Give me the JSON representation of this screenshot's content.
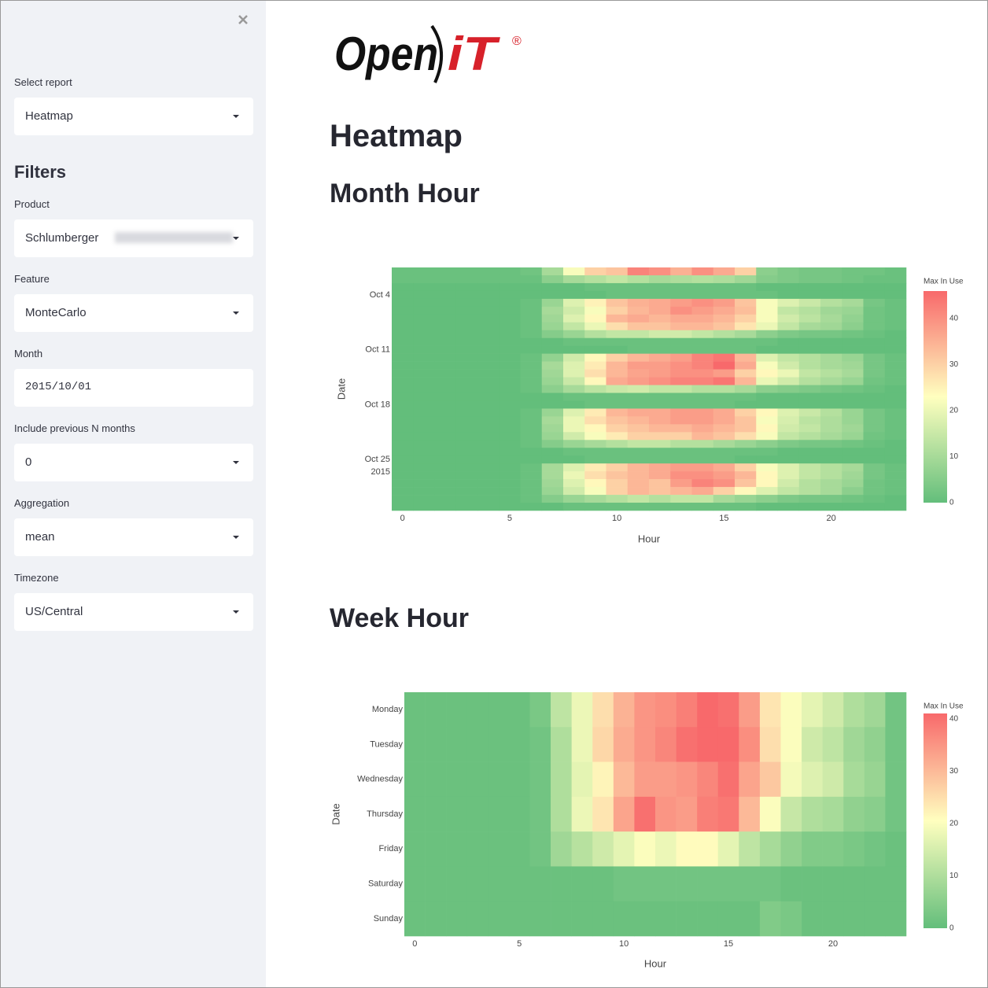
{
  "sidebar": {
    "select_report": {
      "label": "Select report",
      "value": "Heatmap"
    },
    "filters_title": "Filters",
    "fields": [
      {
        "label": "Product",
        "value": "Schlumberger",
        "kind": "select"
      },
      {
        "label": "Feature",
        "value": "MonteCarlo",
        "kind": "select"
      },
      {
        "label": "Month",
        "value": "2015/10/01",
        "kind": "date"
      },
      {
        "label": "Include previous N months",
        "value": "0",
        "kind": "select"
      },
      {
        "label": "Aggregation",
        "value": "mean",
        "kind": "select"
      },
      {
        "label": "Timezone",
        "value": "US/Central",
        "kind": "select"
      }
    ]
  },
  "logo": {
    "word": "Open",
    "brand": "iT",
    "mark": "®"
  },
  "header": {
    "title": "Heatmap"
  },
  "chart_data": [
    {
      "type": "heatmap",
      "title": "Month Hour",
      "xlabel": "Hour",
      "ylabel": "Date",
      "colorbar_title": "Max In Use",
      "x": [
        0,
        1,
        2,
        3,
        4,
        5,
        6,
        7,
        8,
        9,
        10,
        11,
        12,
        13,
        14,
        15,
        16,
        17,
        18,
        19,
        20,
        21,
        22,
        23
      ],
      "y": [
        "2015-10-01",
        "2015-10-02",
        "2015-10-03",
        "2015-10-04",
        "2015-10-05",
        "2015-10-06",
        "2015-10-07",
        "2015-10-08",
        "2015-10-09",
        "2015-10-10",
        "2015-10-11",
        "2015-10-12",
        "2015-10-13",
        "2015-10-14",
        "2015-10-15",
        "2015-10-16",
        "2015-10-17",
        "2015-10-18",
        "2015-10-19",
        "2015-10-20",
        "2015-10-21",
        "2015-10-22",
        "2015-10-23",
        "2015-10-24",
        "2015-10-25",
        "2015-10-26",
        "2015-10-27",
        "2015-10-28",
        "2015-10-29",
        "2015-10-30",
        "2015-10-31"
      ],
      "z": [
        [
          1,
          1,
          1,
          1,
          1,
          1,
          2,
          10,
          22,
          30,
          32,
          42,
          40,
          35,
          40,
          36,
          30,
          6,
          4,
          3,
          3,
          2,
          2,
          1
        ],
        [
          1,
          1,
          1,
          1,
          1,
          1,
          1,
          6,
          10,
          12,
          14,
          12,
          10,
          11,
          12,
          11,
          9,
          5,
          4,
          3,
          3,
          2,
          1,
          1
        ],
        [
          0,
          0,
          0,
          0,
          0,
          0,
          0,
          0,
          0,
          1,
          1,
          1,
          1,
          1,
          1,
          1,
          1,
          0,
          0,
          0,
          0,
          0,
          0,
          0
        ],
        [
          0,
          0,
          0,
          0,
          0,
          0,
          0,
          0,
          0,
          0,
          1,
          1,
          1,
          1,
          1,
          1,
          1,
          1,
          0,
          0,
          0,
          0,
          0,
          0
        ],
        [
          0,
          0,
          0,
          0,
          0,
          0,
          1,
          8,
          18,
          25,
          32,
          35,
          36,
          38,
          40,
          38,
          32,
          22,
          18,
          15,
          12,
          10,
          3,
          1
        ],
        [
          0,
          0,
          0,
          0,
          0,
          0,
          1,
          10,
          16,
          22,
          30,
          34,
          36,
          40,
          38,
          36,
          33,
          22,
          14,
          12,
          9,
          8,
          2,
          1
        ],
        [
          0,
          0,
          0,
          0,
          0,
          0,
          1,
          9,
          18,
          24,
          34,
          36,
          34,
          36,
          36,
          34,
          30,
          22,
          16,
          13,
          10,
          7,
          2,
          1
        ],
        [
          0,
          0,
          0,
          0,
          0,
          0,
          1,
          8,
          14,
          20,
          28,
          32,
          32,
          34,
          34,
          32,
          27,
          20,
          14,
          10,
          9,
          6,
          2,
          1
        ],
        [
          0,
          0,
          0,
          0,
          0,
          0,
          1,
          5,
          8,
          12,
          14,
          14,
          16,
          16,
          14,
          12,
          10,
          6,
          4,
          3,
          3,
          2,
          1,
          0
        ],
        [
          0,
          0,
          0,
          0,
          0,
          0,
          0,
          0,
          1,
          1,
          1,
          1,
          1,
          1,
          1,
          1,
          1,
          1,
          0,
          0,
          0,
          0,
          0,
          0
        ],
        [
          0,
          0,
          0,
          0,
          0,
          0,
          0,
          0,
          0,
          0,
          0,
          1,
          1,
          1,
          1,
          1,
          1,
          0,
          0,
          0,
          0,
          0,
          0,
          0
        ],
        [
          0,
          0,
          0,
          0,
          0,
          0,
          1,
          7,
          16,
          24,
          30,
          34,
          36,
          38,
          42,
          44,
          34,
          18,
          14,
          12,
          10,
          8,
          3,
          1
        ],
        [
          0,
          0,
          0,
          0,
          0,
          0,
          1,
          10,
          18,
          26,
          34,
          38,
          38,
          40,
          42,
          46,
          36,
          22,
          16,
          12,
          10,
          9,
          3,
          1
        ],
        [
          0,
          0,
          0,
          0,
          0,
          0,
          1,
          9,
          18,
          28,
          34,
          37,
          38,
          40,
          40,
          38,
          30,
          24,
          20,
          14,
          12,
          10,
          3,
          1
        ],
        [
          0,
          0,
          0,
          0,
          0,
          0,
          1,
          8,
          15,
          24,
          36,
          38,
          40,
          42,
          42,
          44,
          34,
          20,
          16,
          12,
          10,
          8,
          2,
          1
        ],
        [
          0,
          0,
          0,
          0,
          0,
          0,
          1,
          6,
          10,
          13,
          15,
          16,
          14,
          14,
          12,
          12,
          10,
          6,
          5,
          4,
          3,
          2,
          1,
          0
        ],
        [
          0,
          0,
          0,
          0,
          0,
          0,
          0,
          0,
          1,
          1,
          1,
          1,
          1,
          1,
          1,
          1,
          1,
          0,
          0,
          0,
          0,
          0,
          0,
          0
        ],
        [
          0,
          0,
          0,
          0,
          0,
          0,
          0,
          0,
          0,
          1,
          1,
          1,
          1,
          1,
          1,
          1,
          0,
          0,
          0,
          0,
          0,
          0,
          0,
          0
        ],
        [
          0,
          0,
          0,
          0,
          0,
          0,
          1,
          8,
          18,
          26,
          34,
          36,
          36,
          38,
          38,
          36,
          30,
          24,
          18,
          15,
          12,
          8,
          3,
          1
        ],
        [
          0,
          0,
          0,
          0,
          0,
          0,
          1,
          10,
          20,
          28,
          32,
          34,
          36,
          38,
          38,
          36,
          32,
          22,
          17,
          13,
          11,
          8,
          3,
          1
        ],
        [
          0,
          0,
          0,
          0,
          0,
          0,
          1,
          9,
          20,
          24,
          30,
          32,
          34,
          34,
          36,
          34,
          32,
          24,
          16,
          14,
          11,
          9,
          3,
          1
        ],
        [
          0,
          0,
          0,
          0,
          0,
          0,
          1,
          8,
          16,
          22,
          26,
          30,
          30,
          30,
          34,
          32,
          28,
          22,
          14,
          12,
          10,
          8,
          2,
          1
        ],
        [
          0,
          0,
          0,
          0,
          0,
          0,
          1,
          5,
          8,
          10,
          12,
          14,
          14,
          12,
          12,
          10,
          8,
          6,
          4,
          3,
          3,
          2,
          1,
          0
        ],
        [
          0,
          0,
          0,
          0,
          0,
          0,
          0,
          0,
          1,
          1,
          1,
          1,
          1,
          1,
          1,
          1,
          1,
          1,
          0,
          0,
          0,
          0,
          0,
          0
        ],
        [
          0,
          0,
          0,
          0,
          0,
          0,
          0,
          0,
          0,
          1,
          1,
          1,
          1,
          1,
          1,
          1,
          0,
          0,
          0,
          0,
          0,
          0,
          0,
          0
        ],
        [
          0,
          0,
          0,
          0,
          0,
          0,
          1,
          10,
          18,
          26,
          30,
          34,
          36,
          38,
          38,
          36,
          30,
          22,
          18,
          14,
          12,
          10,
          3,
          1
        ],
        [
          0,
          0,
          0,
          0,
          0,
          0,
          1,
          10,
          20,
          28,
          32,
          34,
          36,
          40,
          40,
          38,
          34,
          24,
          18,
          14,
          12,
          9,
          3,
          1
        ],
        [
          0,
          0,
          0,
          0,
          0,
          0,
          1,
          9,
          18,
          24,
          30,
          34,
          32,
          38,
          42,
          40,
          32,
          24,
          16,
          12,
          10,
          8,
          2,
          1
        ],
        [
          0,
          0,
          0,
          0,
          0,
          0,
          1,
          8,
          16,
          22,
          30,
          34,
          32,
          34,
          36,
          30,
          24,
          18,
          14,
          12,
          10,
          6,
          2,
          1
        ],
        [
          0,
          0,
          0,
          0,
          0,
          0,
          1,
          5,
          8,
          10,
          12,
          14,
          12,
          14,
          14,
          10,
          8,
          6,
          4,
          3,
          3,
          2,
          1,
          0
        ],
        [
          0,
          0,
          0,
          0,
          0,
          0,
          0,
          0,
          1,
          1,
          1,
          1,
          1,
          1,
          1,
          1,
          1,
          0,
          0,
          0,
          0,
          0,
          0,
          0
        ]
      ],
      "xlim": [
        -0.5,
        23.5
      ],
      "xticks": [
        0,
        5,
        10,
        15,
        20
      ],
      "yticks": [
        {
          "value": "2015-10-04",
          "label": "Oct 4"
        },
        {
          "value": "2015-10-11",
          "label": "Oct 11"
        },
        {
          "value": "2015-10-18",
          "label": "Oct 18"
        },
        {
          "value": "2015-10-25",
          "label": [
            "Oct 25",
            "2015"
          ]
        }
      ],
      "zlim": [
        0,
        46
      ],
      "zticks": [
        0,
        10,
        20,
        30,
        40
      ],
      "colorscale": [
        "#63be7b",
        "#ffffbf",
        "#f8696b"
      ]
    },
    {
      "type": "heatmap",
      "title": "Week Hour",
      "xlabel": "Hour",
      "ylabel": "Date",
      "colorbar_title": "Max In Use",
      "x": [
        0,
        1,
        2,
        3,
        4,
        5,
        6,
        7,
        8,
        9,
        10,
        11,
        12,
        13,
        14,
        15,
        16,
        17,
        18,
        19,
        20,
        21,
        22,
        23
      ],
      "y": [
        "Monday",
        "Tuesday",
        "Wednesday",
        "Thursday",
        "Friday",
        "Saturday",
        "Sunday"
      ],
      "z": [
        [
          1,
          1,
          1,
          1,
          1,
          1,
          3,
          12,
          18,
          25,
          31,
          35,
          36,
          38,
          41,
          40,
          34,
          24,
          20,
          17,
          14,
          10,
          8,
          2
        ],
        [
          1,
          1,
          1,
          1,
          1,
          1,
          2,
          10,
          18,
          26,
          32,
          35,
          37,
          40,
          41,
          41,
          36,
          25,
          20,
          14,
          12,
          8,
          6,
          2
        ],
        [
          1,
          1,
          1,
          1,
          1,
          1,
          2,
          10,
          17,
          22,
          30,
          34,
          34,
          35,
          37,
          40,
          33,
          28,
          19,
          16,
          14,
          9,
          7,
          2
        ],
        [
          1,
          1,
          1,
          1,
          1,
          1,
          2,
          10,
          18,
          24,
          33,
          40,
          35,
          34,
          38,
          39,
          30,
          20,
          13,
          10,
          9,
          6,
          5,
          2
        ],
        [
          1,
          1,
          1,
          1,
          1,
          1,
          2,
          8,
          11,
          14,
          17,
          20,
          18,
          21,
          21,
          17,
          12,
          9,
          6,
          4,
          4,
          3,
          2,
          1
        ],
        [
          1,
          1,
          1,
          1,
          1,
          1,
          1,
          1,
          1,
          1,
          2,
          2,
          2,
          2,
          2,
          2,
          2,
          2,
          1,
          1,
          1,
          1,
          1,
          1
        ],
        [
          1,
          1,
          1,
          1,
          1,
          1,
          1,
          1,
          1,
          1,
          1,
          1,
          1,
          1,
          1,
          1,
          1,
          4,
          3,
          1,
          1,
          1,
          1,
          1
        ]
      ],
      "xlim": [
        -0.5,
        23.5
      ],
      "xticks": [
        0,
        5,
        10,
        15,
        20
      ],
      "zlim": [
        0,
        41
      ],
      "zticks": [
        0,
        10,
        20,
        30,
        40
      ],
      "colorscale": [
        "#63be7b",
        "#ffffbf",
        "#f8696b"
      ]
    }
  ]
}
